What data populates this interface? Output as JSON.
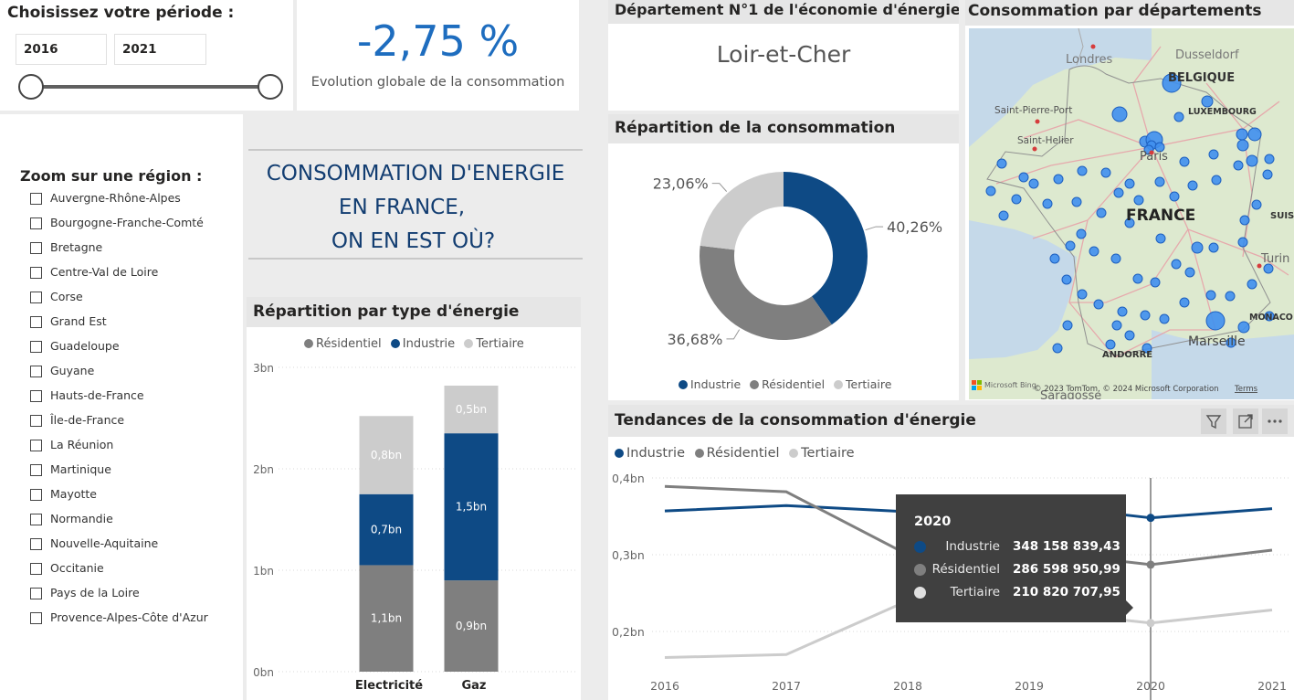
{
  "period": {
    "title": "Choisissez votre période :",
    "start": "2016",
    "end": "2021",
    "range_fraction": [
      0,
      1
    ]
  },
  "kpi": {
    "value": "-2,75 %",
    "label": "Evolution globale de la consommation"
  },
  "top_department": {
    "title": "Département N°1 de l'économie d'énergie",
    "value": "Loir-et-Cher"
  },
  "map": {
    "title": "Consommation par départements",
    "labels": [
      "Londres",
      "Dusseldorf",
      "BELGIQUE",
      "Saint-Pierre-Port",
      "LUXEMBOURG",
      "Saint-Helier",
      "Paris",
      "FRANCE",
      "SUIS",
      "Turin",
      "MONACO",
      "Marseille",
      "ANDORRE",
      "Saragosse"
    ],
    "attribution": "© 2023 TomTom, © 2024 Microsoft Corporation",
    "terms": "Terms",
    "bing": "Microsoft Bing"
  },
  "region_filter": {
    "title": "Zoom sur une région :",
    "items": [
      "Auvergne-Rhône-Alpes",
      "Bourgogne-Franche-Comté",
      "Bretagne",
      "Centre-Val de Loire",
      "Corse",
      "Grand Est",
      "Guadeloupe",
      "Guyane",
      "Hauts-de-France",
      "Île-de-France",
      "La Réunion",
      "Martinique",
      "Mayotte",
      "Normandie",
      "Nouvelle-Aquitaine",
      "Occitanie",
      "Pays de la Loire",
      "Provence-Alpes-Côte d'Azur"
    ]
  },
  "headline": {
    "line1": "CONSOMMATION D'ENERGIE",
    "line2": "EN FRANCE,",
    "line3": "ON EN EST OÙ?"
  },
  "colors": {
    "industrie": "#0e4a85",
    "residentiel": "#7f7f7f",
    "tertiaire": "#cccccc",
    "kpi": "#1e6dbf",
    "map_bubble": "#3f8fee"
  },
  "bar_panel": {
    "title": "Répartition par type d'énergie",
    "legend": [
      "Résidentiel",
      "Industrie",
      "Tertiaire"
    ]
  },
  "donut_panel": {
    "title": "Répartition de la consommation",
    "legend": [
      "Industrie",
      "Résidentiel",
      "Tertiaire"
    ]
  },
  "line_panel": {
    "title": "Tendances de la consommation d'énergie",
    "legend": [
      "Industrie",
      "Résidentiel",
      "Tertiaire"
    ],
    "icons": [
      "filter-icon",
      "focus-mode-icon",
      "more-options-icon"
    ]
  },
  "tooltip": {
    "year": "2020",
    "rows": [
      {
        "label": "Industrie",
        "value": "348 158 839,43"
      },
      {
        "label": "Résidentiel",
        "value": "286 598 950,99"
      },
      {
        "label": "Tertiaire",
        "value": "210 820 707,95"
      }
    ]
  },
  "chart_data": [
    {
      "type": "bar",
      "stacked": true,
      "title": "Répartition par type d'énergie",
      "categories": [
        "Electricité",
        "Gaz"
      ],
      "series": [
        {
          "name": "Résidentiel",
          "values": [
            1.05,
            0.9
          ],
          "labels": [
            "1,1bn",
            "0,9bn"
          ]
        },
        {
          "name": "Industrie",
          "values": [
            0.7,
            1.45
          ],
          "labels": [
            "0,7bn",
            "1,5bn"
          ]
        },
        {
          "name": "Tertiaire",
          "values": [
            0.77,
            0.47
          ],
          "labels": [
            "0,8bn",
            "0,5bn"
          ]
        }
      ],
      "yticks": [
        "0bn",
        "1bn",
        "2bn",
        "3bn"
      ],
      "ylim": [
        0,
        3
      ],
      "legend": "top",
      "grid": true
    },
    {
      "type": "pie",
      "donut": true,
      "title": "Répartition de la consommation",
      "categories": [
        "Industrie",
        "Résidentiel",
        "Tertiaire"
      ],
      "values": [
        40.26,
        36.68,
        23.06
      ],
      "labels": [
        "40,26%",
        "36,68%",
        "23,06%"
      ],
      "legend": "bottom"
    },
    {
      "type": "line",
      "title": "Tendances de la consommation d'énergie",
      "x": [
        "2016",
        "2017",
        "2018",
        "2019",
        "2020",
        "2021"
      ],
      "series": [
        {
          "name": "Industrie",
          "values": [
            0.357,
            0.364,
            0.356,
            0.366,
            0.348,
            0.36
          ]
        },
        {
          "name": "Résidentiel",
          "values": [
            0.389,
            0.382,
            0.3,
            0.305,
            0.287,
            0.306
          ]
        },
        {
          "name": "Tertiaire",
          "values": [
            0.166,
            0.17,
            0.24,
            0.228,
            0.211,
            0.228
          ]
        }
      ],
      "yticks": [
        "0,2bn",
        "0,3bn",
        "0,4bn"
      ],
      "ylim": [
        0.15,
        0.4
      ],
      "highlight_x": "2020",
      "legend": "top",
      "grid": true
    }
  ]
}
